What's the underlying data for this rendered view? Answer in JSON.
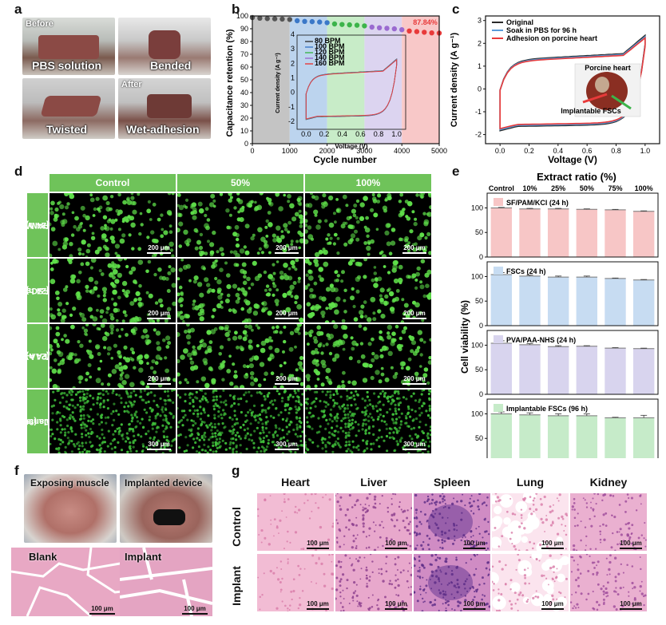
{
  "panel_labels": {
    "a": "a",
    "b": "b",
    "c": "c",
    "d": "d",
    "e": "e",
    "f": "f",
    "g": "g"
  },
  "panel_a": {
    "photos": [
      {
        "caption": "PBS solution",
        "tag": "Before"
      },
      {
        "caption": "Bended",
        "tag": ""
      },
      {
        "caption": "Twisted",
        "tag": ""
      },
      {
        "caption": "Wet-adhesion",
        "tag": "After"
      }
    ]
  },
  "panel_b": {
    "chart_data": {
      "type": "scatter",
      "xlabel": "Cycle number",
      "ylabel": "Capacitance retention (%)",
      "xlim": [
        0,
        5000
      ],
      "ylim": [
        0,
        100
      ],
      "xticks": [
        0,
        1000,
        2000,
        3000,
        4000,
        5000
      ],
      "yticks": [
        0,
        10,
        20,
        30,
        40,
        50,
        60,
        70,
        80,
        90,
        100
      ],
      "annotation": "87.84%",
      "bands": [
        {
          "from": 0,
          "to": 1000,
          "color": "#c4c4c4"
        },
        {
          "from": 1000,
          "to": 2000,
          "color": "#bcd4ee"
        },
        {
          "from": 2000,
          "to": 3000,
          "color": "#c8ecc8"
        },
        {
          "from": 3000,
          "to": 4000,
          "color": "#dcd4f0"
        },
        {
          "from": 4000,
          "to": 5000,
          "color": "#f8c8c8"
        }
      ],
      "points": [
        {
          "x": 0,
          "y": 100,
          "color": "#555555"
        },
        {
          "x": 200,
          "y": 99.5,
          "color": "#555555"
        },
        {
          "x": 400,
          "y": 99.2,
          "color": "#555555"
        },
        {
          "x": 600,
          "y": 99,
          "color": "#555555"
        },
        {
          "x": 800,
          "y": 98.8,
          "color": "#555555"
        },
        {
          "x": 1000,
          "y": 98.5,
          "color": "#555555"
        },
        {
          "x": 1200,
          "y": 97.5,
          "color": "#3b78c8"
        },
        {
          "x": 1400,
          "y": 97,
          "color": "#3b78c8"
        },
        {
          "x": 1600,
          "y": 96.8,
          "color": "#3b78c8"
        },
        {
          "x": 1800,
          "y": 96.5,
          "color": "#3b78c8"
        },
        {
          "x": 2000,
          "y": 96,
          "color": "#3b78c8"
        },
        {
          "x": 2200,
          "y": 95,
          "color": "#3cb44a"
        },
        {
          "x": 2400,
          "y": 94.6,
          "color": "#3cb44a"
        },
        {
          "x": 2600,
          "y": 94.3,
          "color": "#3cb44a"
        },
        {
          "x": 2800,
          "y": 94,
          "color": "#3cb44a"
        },
        {
          "x": 3000,
          "y": 93.5,
          "color": "#3cb44a"
        },
        {
          "x": 3200,
          "y": 92.5,
          "color": "#9a6ad0"
        },
        {
          "x": 3400,
          "y": 92,
          "color": "#9a6ad0"
        },
        {
          "x": 3600,
          "y": 91.6,
          "color": "#9a6ad0"
        },
        {
          "x": 3800,
          "y": 91.2,
          "color": "#9a6ad0"
        },
        {
          "x": 4000,
          "y": 90.5,
          "color": "#9a6ad0"
        },
        {
          "x": 4200,
          "y": 89.5,
          "color": "#e83a3a"
        },
        {
          "x": 4400,
          "y": 89,
          "color": "#e83a3a"
        },
        {
          "x": 4600,
          "y": 88.5,
          "color": "#e83a3a"
        },
        {
          "x": 4800,
          "y": 88,
          "color": "#e83a3a"
        },
        {
          "x": 5000,
          "y": 87.84,
          "color": "#e83a3a"
        }
      ],
      "inset": {
        "type": "line",
        "xlabel": "Voltage (V)",
        "ylabel": "Current density (A g⁻¹)",
        "xlim": [
          -0.1,
          1.1
        ],
        "ylim": [
          -2.5,
          4
        ],
        "xticks": [
          0.0,
          0.2,
          0.4,
          0.6,
          0.8,
          1.0
        ],
        "yticks": [
          -2,
          -1,
          0,
          1,
          2,
          3,
          4
        ],
        "legend": [
          {
            "name": "80 BPM",
            "color": "#333333"
          },
          {
            "name": "100 BPM",
            "color": "#3b78c8"
          },
          {
            "name": "120 BPM",
            "color": "#3cb44a"
          },
          {
            "name": "140 BPM",
            "color": "#9a6ad0"
          },
          {
            "name": "160 BPM",
            "color": "#e83a3a"
          }
        ]
      }
    }
  },
  "panel_c": {
    "chart_data": {
      "type": "line",
      "xlabel": "Voltage (V)",
      "ylabel": "Current density (A g⁻¹)",
      "xlim": [
        -0.1,
        1.1
      ],
      "ylim": [
        -2.4,
        3.2
      ],
      "xticks": [
        0.0,
        0.2,
        0.4,
        0.6,
        0.8,
        1.0
      ],
      "yticks": [
        -2,
        -1,
        0,
        1,
        2,
        3
      ],
      "legend": [
        {
          "name": "Original",
          "color": "#2a2a2a"
        },
        {
          "name": "Soak in PBS for 96 h",
          "color": "#5a9bd8"
        },
        {
          "name": "Adhesion on porcine heart",
          "color": "#e83a3a"
        }
      ],
      "inset_labels": {
        "top": "Porcine heart",
        "bottom": "Implantable FSCs"
      }
    }
  },
  "panel_d": {
    "columns": [
      "Control",
      "50%",
      "100%"
    ],
    "rows": [
      {
        "label": "SF/PAM/KCl",
        "sub": "(24 h)",
        "scale": "200 μm"
      },
      {
        "label": "FSCs",
        "sub": "(24 h)",
        "scale": "200 μm"
      },
      {
        "label": "PVA/PAA-NHS",
        "sub": "(24 h)",
        "scale": "200 μm"
      },
      {
        "label": "Implantable",
        "sub": "FSCs (96 h)",
        "scale": "300 μm"
      }
    ]
  },
  "panel_e": {
    "chart_data": {
      "type": "bar",
      "title": "Extract ratio (%)",
      "ylabel": "Cell viability (%)",
      "categories": [
        "Control",
        "10%",
        "25%",
        "50%",
        "75%",
        "100%"
      ],
      "ylim": [
        0,
        130
      ],
      "yticks": [
        0,
        50,
        100
      ],
      "subplots": [
        {
          "name": "SF/PAM/KCl (24 h)",
          "color": "#f7c6c6",
          "values": [
            100,
            98,
            98,
            97,
            96,
            93
          ],
          "errors": [
            1,
            1,
            1,
            1,
            1,
            1
          ]
        },
        {
          "name": "FSCs (24 h)",
          "color": "#c7dcf2",
          "values": [
            104,
            101,
            99,
            99,
            96,
            93
          ],
          "errors": [
            4,
            2,
            2,
            2,
            1,
            1
          ]
        },
        {
          "name": "PVA/PAA-NHS (24 h)",
          "color": "#d8d4ee",
          "values": [
            104,
            101,
            97,
            98,
            94,
            93
          ],
          "errors": [
            5,
            2,
            2,
            1,
            1,
            1
          ]
        },
        {
          "name": "Implantable FSCs (96 h)",
          "color": "#c6ebc9",
          "values": [
            100,
            98,
            96,
            96,
            92,
            92
          ],
          "errors": [
            4,
            4,
            4,
            4,
            1,
            5
          ]
        }
      ]
    }
  },
  "panel_f": {
    "photos": [
      {
        "caption": "Exposing muscle"
      },
      {
        "caption": "Implanted device"
      }
    ],
    "histology": [
      {
        "caption": "Blank",
        "scale": "100 μm"
      },
      {
        "caption": "Implant",
        "scale": "100 μm"
      }
    ]
  },
  "panel_g": {
    "columns": [
      "Heart",
      "Liver",
      "Spleen",
      "Lung",
      "Kidney"
    ],
    "rows": [
      "Control",
      "Implant"
    ],
    "scale": "100 μm"
  }
}
